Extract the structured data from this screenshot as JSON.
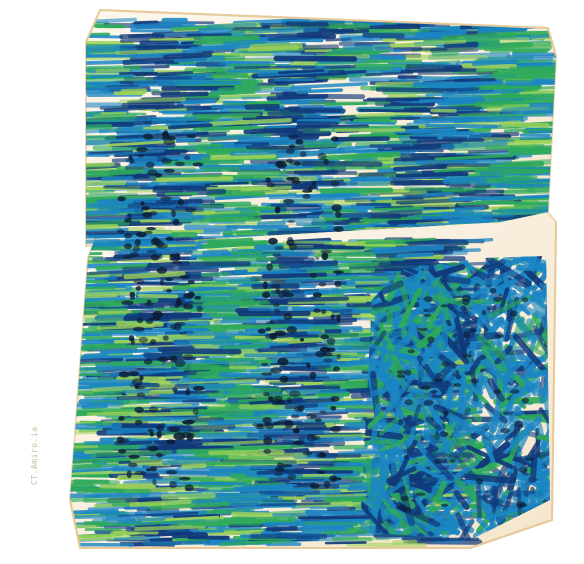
{
  "image": {
    "subject": "3d-volume-rendering-fibers",
    "colors": {
      "background": "#ffffff",
      "box_edge": "#e9cfa6",
      "box_fill": "#fbf1df",
      "fiber_light": "#9fd35a",
      "fiber_mid": "#2eaa5a",
      "fiber_blue": "#1b86c4",
      "fiber_dark": "#10397a",
      "pore_dark": "#0b1b33"
    },
    "watermark": "CT.Amiro.ia"
  }
}
